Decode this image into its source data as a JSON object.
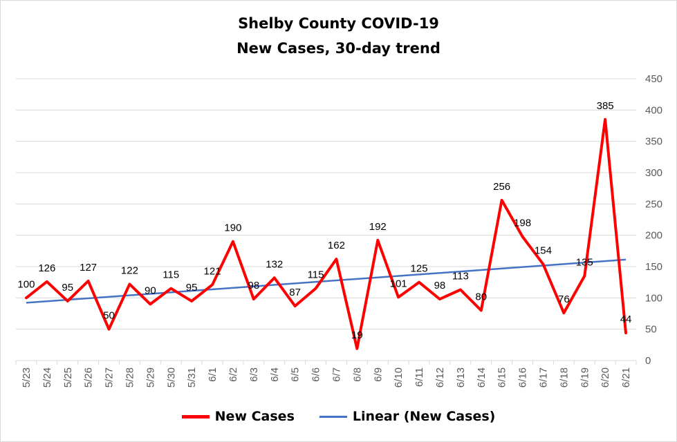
{
  "chart_data": {
    "type": "line",
    "title": "Shelby County COVID-19",
    "subtitle": "New Cases, 30-day trend",
    "categories": [
      "5/23",
      "5/24",
      "5/25",
      "5/26",
      "5/27",
      "5/28",
      "5/29",
      "5/30",
      "5/31",
      "6/1",
      "6/2",
      "6/3",
      "6/4",
      "6/5",
      "6/6",
      "6/7",
      "6/8",
      "6/9",
      "6/10",
      "6/11",
      "6/12",
      "6/13",
      "6/14",
      "6/15",
      "6/16",
      "6/17",
      "6/18",
      "6/19",
      "6/20",
      "6/21"
    ],
    "series": [
      {
        "name": "New Cases",
        "color": "#ff0000",
        "values": [
          100,
          126,
          95,
          127,
          50,
          122,
          90,
          115,
          95,
          121,
          190,
          98,
          132,
          87,
          115,
          162,
          19,
          192,
          101,
          125,
          98,
          113,
          80,
          256,
          198,
          154,
          76,
          135,
          385,
          44
        ]
      },
      {
        "name": "Linear (New Cases)",
        "color": "#4472c4",
        "trendline": "linear"
      }
    ],
    "ylim": [
      0,
      450
    ],
    "yticks": [
      "0",
      "50",
      "100",
      "150",
      "200",
      "250",
      "300",
      "350",
      "400",
      "450"
    ],
    "y_axis_side": "right",
    "grid": true,
    "legend_position": "bottom"
  }
}
